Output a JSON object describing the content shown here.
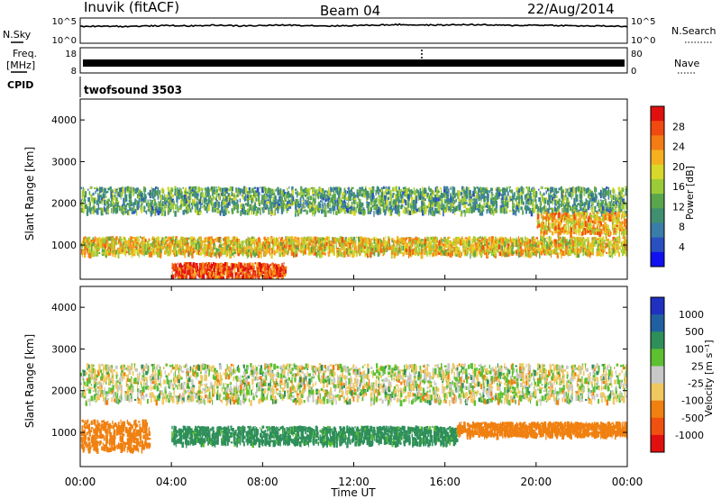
{
  "header": {
    "station": "Inuvik (fitACF)",
    "beam": "Beam 04",
    "date": "22/Aug/2014"
  },
  "noise_panel": {
    "left_label": "N.Sky",
    "left_ticks": [
      "10^5",
      "10^0"
    ],
    "right_label": "N.Search",
    "right_ticks": [
      "10^5",
      "10^0"
    ]
  },
  "freq_panel": {
    "left_label_1": "Freq.",
    "left_label_2": "[MHz]",
    "left_ticks": [
      "18",
      "8"
    ],
    "right_label": "Nave",
    "right_ticks": [
      "80",
      "0"
    ]
  },
  "cpid_panel": {
    "label": "CPID",
    "program": "twofsound 3503"
  },
  "x_axis": {
    "label": "Time UT",
    "ticks": [
      "00:00",
      "04:00",
      "08:00",
      "12:00",
      "16:00",
      "20:00",
      "00:00"
    ]
  },
  "power_panel": {
    "ylabel": "Slant Range [km]",
    "yticks": [
      "4000",
      "3000",
      "2000",
      "1000"
    ],
    "colorbar_label": "Power [dB]",
    "colorbar_ticks": [
      "28",
      "24",
      "20",
      "16",
      "12",
      "8",
      "4"
    ]
  },
  "velocity_panel": {
    "ylabel": "Slant Range [km]",
    "yticks": [
      "4000",
      "3000",
      "2000",
      "1000"
    ],
    "colorbar_label": "Velocity [m s⁻¹]",
    "colorbar_ticks": [
      "1000",
      "500",
      "100",
      "25",
      "-25",
      "-100",
      "-500",
      "-1000"
    ]
  },
  "chart_data": [
    {
      "type": "heatmap",
      "title": "Power",
      "xlabel": "Time UT",
      "ylabel": "Slant Range [km]",
      "xlim": [
        0,
        24
      ],
      "ylim": [
        180,
        4500
      ],
      "colorbar": {
        "label": "Power [dB]",
        "range": [
          0,
          32
        ],
        "ticks": [
          4,
          8,
          12,
          16,
          20,
          24,
          28
        ]
      },
      "scatter_bands": [
        {
          "t_start": 0.0,
          "t_end": 24.0,
          "range_center_km": 950,
          "range_halfwidth_km": 200,
          "power_db": 20
        },
        {
          "t_start": 0.0,
          "t_end": 24.0,
          "range_center_km": 2050,
          "range_halfwidth_km": 300,
          "power_db": 12
        },
        {
          "t_start": 4.0,
          "t_end": 9.0,
          "range_center_km": 350,
          "range_halfwidth_km": 180,
          "power_db": 28
        },
        {
          "t_start": 20.0,
          "t_end": 24.0,
          "range_center_km": 1500,
          "range_halfwidth_km": 250,
          "power_db": 22
        }
      ]
    },
    {
      "type": "heatmap",
      "title": "Velocity",
      "xlabel": "Time UT",
      "ylabel": "Slant Range [km]",
      "xlim": [
        0,
        24
      ],
      "ylim": [
        180,
        4500
      ],
      "colorbar": {
        "label": "Velocity [m s⁻¹]",
        "range": [
          -1000,
          1000
        ],
        "ticks": [
          1000,
          500,
          100,
          25,
          -25,
          -100,
          -500,
          -1000
        ]
      },
      "scatter_bands": [
        {
          "t_start": 0.0,
          "t_end": 3.0,
          "range_center_km": 900,
          "range_halfwidth_km": 350,
          "velocity": -300
        },
        {
          "t_start": 4.0,
          "t_end": 16.5,
          "range_center_km": 900,
          "range_halfwidth_km": 200,
          "velocity": 200
        },
        {
          "t_start": 16.5,
          "t_end": 24.0,
          "range_center_km": 1050,
          "range_halfwidth_km": 150,
          "velocity": -300
        },
        {
          "t_start": 0.0,
          "t_end": 24.0,
          "range_center_km": 2150,
          "range_halfwidth_km": 450,
          "velocity": 0
        }
      ]
    },
    {
      "type": "line",
      "title": "N.Sky",
      "xlim": [
        0,
        24
      ],
      "series": [
        {
          "name": "N.Sky",
          "values": [
            3.2,
            3.3,
            3.2,
            3.3,
            3.4,
            3.3,
            3.5,
            3.3,
            3.4,
            3.5,
            3.4,
            3.3,
            3.4,
            3.5,
            3.6,
            3.5,
            3.5,
            3.6,
            3.5,
            3.4,
            3.5,
            3.4,
            3.3,
            3.3,
            3.2
          ]
        }
      ]
    },
    {
      "type": "scatter",
      "title": "Freq.",
      "xlim": [
        0,
        24
      ],
      "series": [
        {
          "name": "Freq.",
          "values": [
            10.5,
            10.5
          ]
        }
      ]
    }
  ]
}
